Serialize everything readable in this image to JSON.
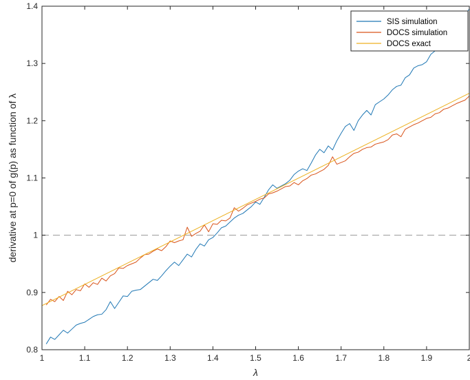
{
  "chart_data": {
    "type": "line",
    "title": "",
    "xlabel": "λ",
    "ylabel": "derivative at p=0 of g(p) as function of  λ",
    "xlim": [
      1.0,
      2.0
    ],
    "ylim": [
      0.8,
      1.4
    ],
    "xticks": [
      "1",
      "1.1",
      "1.2",
      "1.3",
      "1.4",
      "1.5",
      "1.6",
      "1.7",
      "1.8",
      "1.9",
      "2"
    ],
    "yticks": [
      "0.8",
      "0.9",
      "1",
      "1.1",
      "1.2",
      "1.3",
      "1.4"
    ],
    "xtick_values": [
      1.0,
      1.1,
      1.2,
      1.3,
      1.4,
      1.5,
      1.6,
      1.7,
      1.8,
      1.9,
      2.0
    ],
    "ytick_values": [
      0.8,
      0.9,
      1.0,
      1.1,
      1.2,
      1.3,
      1.4
    ],
    "reference_line": {
      "y": 1.0,
      "style": "dashed",
      "color": "#a0a0a0"
    },
    "legend_position": "top-right",
    "grid": false,
    "series": [
      {
        "name": "SIS simulation",
        "color": "#1f77b4",
        "x": [
          1.01,
          1.02,
          1.03,
          1.04,
          1.05,
          1.06,
          1.07,
          1.08,
          1.09,
          1.1,
          1.11,
          1.12,
          1.13,
          1.14,
          1.15,
          1.16,
          1.17,
          1.18,
          1.19,
          1.2,
          1.21,
          1.22,
          1.23,
          1.24,
          1.25,
          1.26,
          1.27,
          1.28,
          1.29,
          1.3,
          1.31,
          1.32,
          1.33,
          1.34,
          1.35,
          1.36,
          1.37,
          1.38,
          1.39,
          1.4,
          1.41,
          1.42,
          1.43,
          1.44,
          1.45,
          1.46,
          1.47,
          1.48,
          1.49,
          1.5,
          1.51,
          1.52,
          1.53,
          1.54,
          1.55,
          1.56,
          1.57,
          1.58,
          1.59,
          1.6,
          1.61,
          1.62,
          1.63,
          1.64,
          1.65,
          1.66,
          1.67,
          1.68,
          1.69,
          1.7,
          1.71,
          1.72,
          1.73,
          1.74,
          1.75,
          1.76,
          1.77,
          1.78,
          1.79,
          1.8,
          1.81,
          1.82,
          1.83,
          1.84,
          1.85,
          1.86,
          1.87,
          1.88,
          1.89,
          1.9,
          1.91,
          1.92,
          1.93,
          1.94,
          1.95,
          1.96,
          1.97,
          1.98,
          1.99,
          2.0
        ],
        "y": [
          0.81,
          0.822,
          0.818,
          0.826,
          0.834,
          0.829,
          0.836,
          0.843,
          0.846,
          0.848,
          0.853,
          0.858,
          0.861,
          0.862,
          0.87,
          0.884,
          0.872,
          0.883,
          0.894,
          0.893,
          0.902,
          0.904,
          0.905,
          0.911,
          0.917,
          0.923,
          0.921,
          0.929,
          0.938,
          0.946,
          0.953,
          0.947,
          0.957,
          0.967,
          0.962,
          0.975,
          0.985,
          0.981,
          0.992,
          0.996,
          1.004,
          1.013,
          1.016,
          1.023,
          1.03,
          1.035,
          1.038,
          1.044,
          1.05,
          1.058,
          1.054,
          1.066,
          1.079,
          1.088,
          1.082,
          1.086,
          1.09,
          1.096,
          1.106,
          1.112,
          1.116,
          1.113,
          1.126,
          1.14,
          1.15,
          1.144,
          1.156,
          1.149,
          1.165,
          1.178,
          1.19,
          1.195,
          1.183,
          1.2,
          1.21,
          1.218,
          1.21,
          1.228,
          1.233,
          1.238,
          1.245,
          1.254,
          1.26,
          1.262,
          1.275,
          1.28,
          1.292,
          1.296,
          1.298,
          1.303,
          1.316,
          1.322,
          1.334,
          1.345,
          1.352,
          1.36,
          1.368,
          1.377,
          1.386,
          1.395
        ]
      },
      {
        "name": "DOCS simulation",
        "color": "#d95319",
        "x": [
          1.01,
          1.02,
          1.03,
          1.04,
          1.05,
          1.06,
          1.07,
          1.08,
          1.09,
          1.1,
          1.11,
          1.12,
          1.13,
          1.14,
          1.15,
          1.16,
          1.17,
          1.18,
          1.19,
          1.2,
          1.21,
          1.22,
          1.23,
          1.24,
          1.25,
          1.26,
          1.27,
          1.28,
          1.29,
          1.3,
          1.31,
          1.32,
          1.33,
          1.34,
          1.35,
          1.36,
          1.37,
          1.38,
          1.39,
          1.4,
          1.41,
          1.42,
          1.43,
          1.44,
          1.45,
          1.46,
          1.47,
          1.48,
          1.49,
          1.5,
          1.51,
          1.52,
          1.53,
          1.54,
          1.55,
          1.56,
          1.57,
          1.58,
          1.59,
          1.6,
          1.61,
          1.62,
          1.63,
          1.64,
          1.65,
          1.66,
          1.67,
          1.68,
          1.69,
          1.7,
          1.71,
          1.72,
          1.73,
          1.74,
          1.75,
          1.76,
          1.77,
          1.78,
          1.79,
          1.8,
          1.81,
          1.82,
          1.83,
          1.84,
          1.85,
          1.86,
          1.87,
          1.88,
          1.89,
          1.9,
          1.91,
          1.92,
          1.93,
          1.94,
          1.95,
          1.96,
          1.97,
          1.98,
          1.99,
          2.0
        ],
        "y": [
          0.878,
          0.888,
          0.884,
          0.893,
          0.886,
          0.902,
          0.896,
          0.905,
          0.903,
          0.915,
          0.909,
          0.917,
          0.914,
          0.925,
          0.92,
          0.929,
          0.933,
          0.943,
          0.942,
          0.947,
          0.95,
          0.953,
          0.96,
          0.966,
          0.967,
          0.972,
          0.976,
          0.973,
          0.98,
          0.99,
          0.987,
          0.99,
          0.992,
          1.014,
          0.998,
          1.003,
          1.007,
          1.018,
          1.006,
          1.02,
          1.019,
          1.026,
          1.025,
          1.03,
          1.048,
          1.042,
          1.047,
          1.053,
          1.056,
          1.059,
          1.063,
          1.065,
          1.072,
          1.074,
          1.077,
          1.081,
          1.085,
          1.086,
          1.092,
          1.088,
          1.095,
          1.099,
          1.105,
          1.107,
          1.111,
          1.115,
          1.122,
          1.137,
          1.124,
          1.127,
          1.13,
          1.137,
          1.143,
          1.145,
          1.15,
          1.153,
          1.154,
          1.159,
          1.161,
          1.163,
          1.167,
          1.175,
          1.177,
          1.172,
          1.185,
          1.189,
          1.193,
          1.196,
          1.2,
          1.204,
          1.206,
          1.212,
          1.214,
          1.22,
          1.222,
          1.226,
          1.23,
          1.233,
          1.236,
          1.243
        ]
      },
      {
        "name": "DOCS exact",
        "color": "#edb120",
        "x": [
          1.0,
          2.0
        ],
        "y": [
          0.877,
          1.248
        ]
      }
    ]
  }
}
